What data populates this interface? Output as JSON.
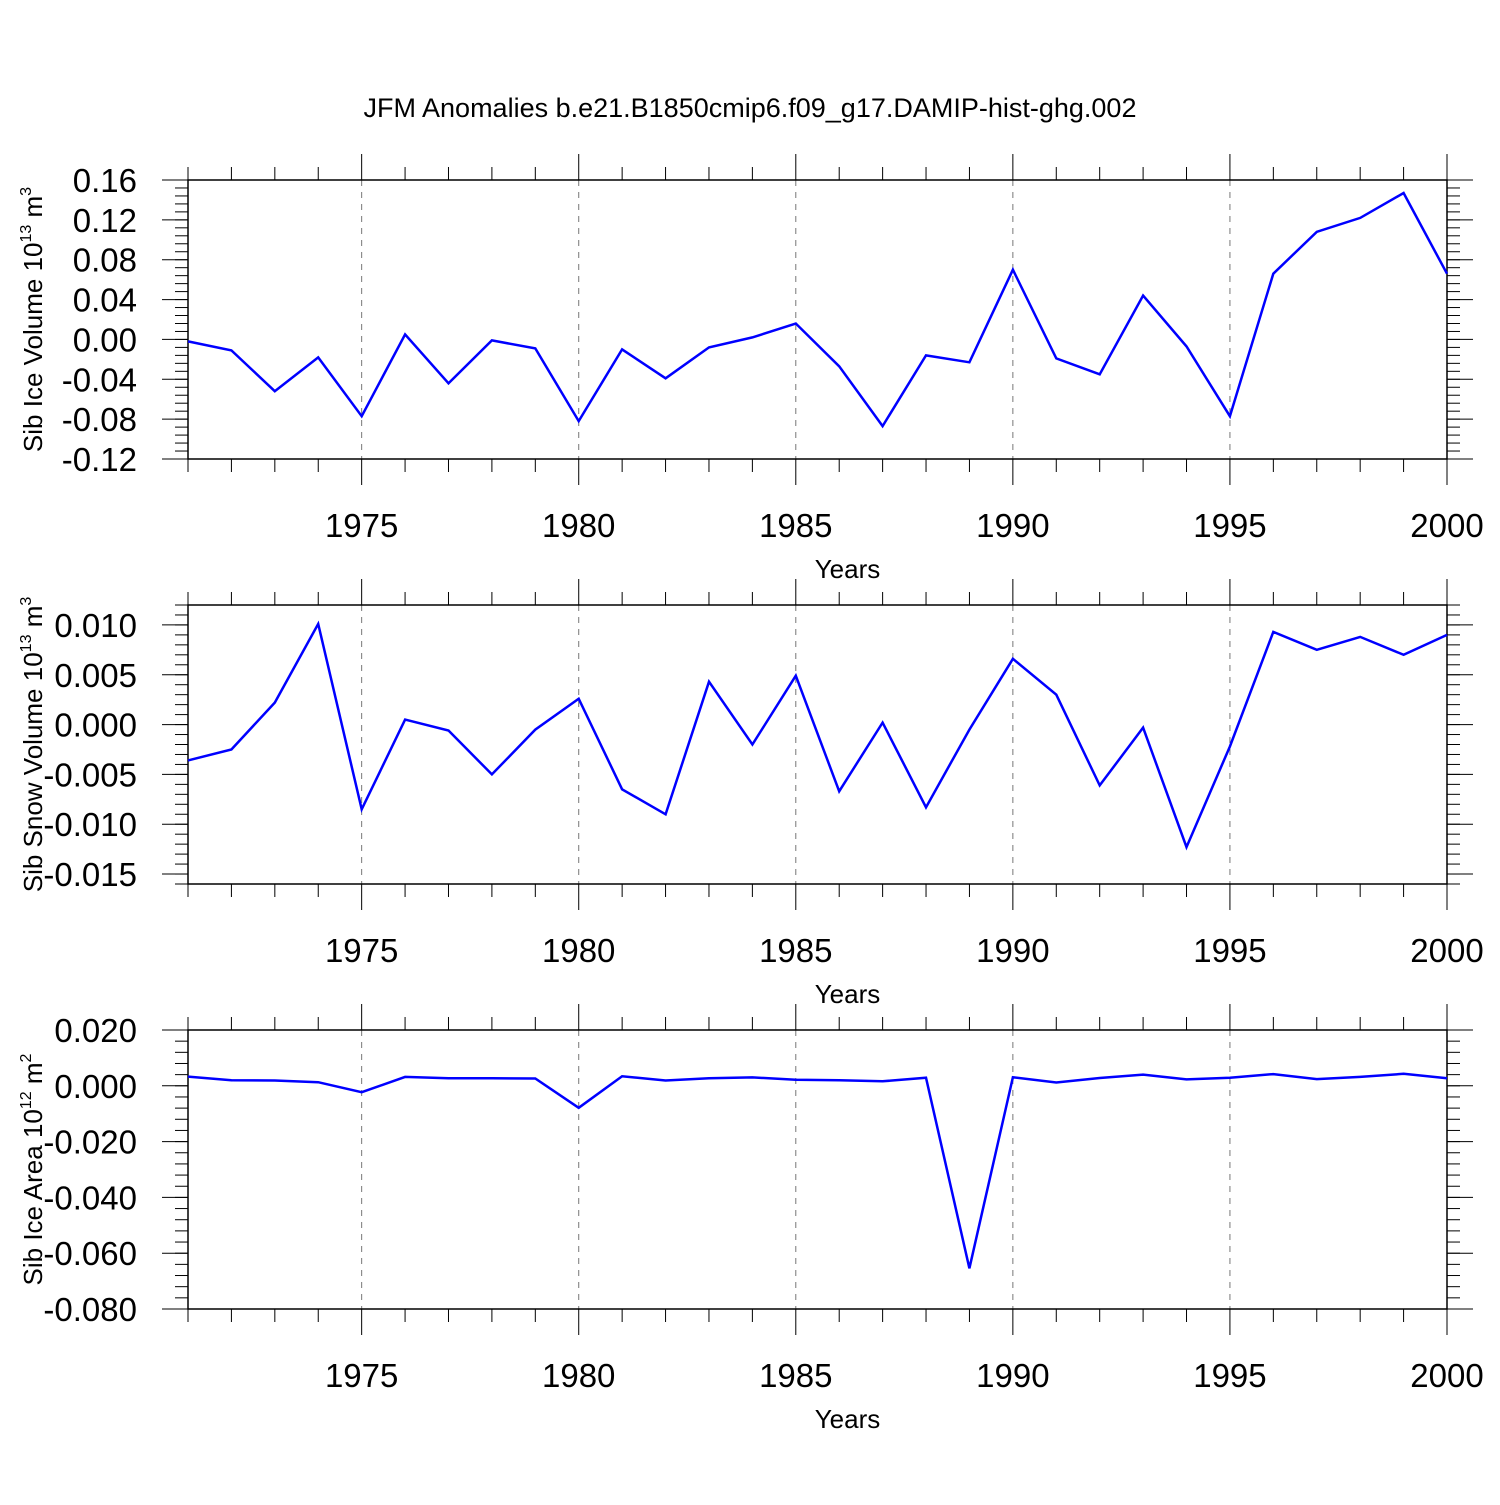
{
  "chart_data": [
    {
      "type": "line",
      "title": "JFM Anomalies b.e21.B1850cmip6.f09_g17.DAMIP-hist-ghg.002",
      "xlabel": "Years",
      "ylabel": "Sib Ice Volume 10",
      "ylabel_exp": "13",
      "ylabel_unit": " m",
      "ylabel_unit_exp": "3",
      "xlim": [
        1971,
        2000
      ],
      "ylim": [
        -0.12,
        0.16
      ],
      "y_major_ticks": [
        -0.12,
        -0.08,
        -0.04,
        0.0,
        0.04,
        0.08,
        0.12,
        0.16
      ],
      "y_tick_labels": [
        "-0.12",
        "-0.08",
        "-0.04",
        "0.00",
        "0.04",
        "0.08",
        "0.12",
        "0.16"
      ],
      "y_minor_step": 0.008,
      "x_major_ticks": [
        1975,
        1980,
        1985,
        1990,
        1995,
        2000
      ],
      "x_tick_labels": [
        "1975",
        "1980",
        "1985",
        "1990",
        "1995",
        "2000"
      ],
      "grid": "vertical dashed at major x ticks",
      "color": "#0000ff",
      "x": [
        1971,
        1972,
        1973,
        1974,
        1975,
        1976,
        1977,
        1978,
        1979,
        1980,
        1981,
        1982,
        1983,
        1984,
        1985,
        1986,
        1987,
        1988,
        1989,
        1990,
        1991,
        1992,
        1993,
        1994,
        1995,
        1996,
        1997,
        1998,
        1999,
        2000
      ],
      "values": [
        -0.002,
        -0.011,
        -0.052,
        -0.018,
        -0.077,
        0.005,
        -0.044,
        -0.001,
        -0.009,
        -0.082,
        -0.01,
        -0.039,
        -0.008,
        0.002,
        0.016,
        -0.027,
        -0.087,
        -0.016,
        -0.023,
        0.07,
        -0.019,
        -0.035,
        0.044,
        -0.007,
        -0.077,
        0.066,
        0.108,
        0.122,
        0.147,
        0.066
      ]
    },
    {
      "type": "line",
      "title": "",
      "xlabel": "Years",
      "ylabel": "Sib Snow Volume 10",
      "ylabel_exp": "13",
      "ylabel_unit": " m",
      "ylabel_unit_exp": "3",
      "xlim": [
        1971,
        2000
      ],
      "ylim": [
        -0.016,
        0.012
      ],
      "y_major_ticks": [
        -0.015,
        -0.01,
        -0.005,
        0.0,
        0.005,
        0.01
      ],
      "y_tick_labels": [
        "-0.015",
        "-0.010",
        "-0.005",
        "0.000",
        "0.005",
        "0.010"
      ],
      "y_minor_step": 0.001,
      "x_major_ticks": [
        1975,
        1980,
        1985,
        1990,
        1995,
        2000
      ],
      "x_tick_labels": [
        "1975",
        "1980",
        "1985",
        "1990",
        "1995",
        "2000"
      ],
      "grid": "vertical dashed at major x ticks",
      "color": "#0000ff",
      "x": [
        1971,
        1972,
        1973,
        1974,
        1975,
        1976,
        1977,
        1978,
        1979,
        1980,
        1981,
        1982,
        1983,
        1984,
        1985,
        1986,
        1987,
        1988,
        1989,
        1990,
        1991,
        1992,
        1993,
        1994,
        1995,
        1996,
        1997,
        1998,
        1999,
        2000
      ],
      "values": [
        -0.0036,
        -0.0025,
        0.0022,
        0.0101,
        -0.0085,
        0.0005,
        -0.0006,
        -0.005,
        -0.0005,
        0.0026,
        -0.0065,
        -0.009,
        0.0043,
        -0.002,
        0.0049,
        -0.0067,
        0.0002,
        -0.0083,
        -0.0005,
        0.0066,
        0.003,
        -0.0061,
        -0.0003,
        -0.0123,
        -0.0022,
        0.0093,
        0.0075,
        0.0088,
        0.007,
        0.009
      ]
    },
    {
      "type": "line",
      "title": "",
      "xlabel": "Years",
      "ylabel": "Sib Ice Area 10",
      "ylabel_exp": "12",
      "ylabel_unit": " m",
      "ylabel_unit_exp": "2",
      "xlim": [
        1971,
        2000
      ],
      "ylim": [
        -0.08,
        0.02
      ],
      "y_major_ticks": [
        -0.08,
        -0.06,
        -0.04,
        -0.02,
        0.0,
        0.02
      ],
      "y_tick_labels": [
        "-0.080",
        "-0.060",
        "-0.040",
        "-0.020",
        "0.000",
        "0.020"
      ],
      "y_minor_step": 0.004,
      "x_major_ticks": [
        1975,
        1980,
        1985,
        1990,
        1995,
        2000
      ],
      "x_tick_labels": [
        "1975",
        "1980",
        "1985",
        "1990",
        "1995",
        "2000"
      ],
      "grid": "vertical dashed at major x ticks",
      "color": "#0000ff",
      "x": [
        1971,
        1972,
        1973,
        1974,
        1975,
        1976,
        1977,
        1978,
        1979,
        1980,
        1981,
        1982,
        1983,
        1984,
        1985,
        1986,
        1987,
        1988,
        1989,
        1990,
        1991,
        1992,
        1993,
        1994,
        1995,
        1996,
        1997,
        1998,
        1999,
        2000
      ],
      "values": [
        0.0033,
        0.002,
        0.0019,
        0.0013,
        -0.0023,
        0.0032,
        0.0027,
        0.0027,
        0.0026,
        -0.0079,
        0.0034,
        0.0019,
        0.0027,
        0.003,
        0.0022,
        0.002,
        0.0016,
        0.0029,
        -0.0654,
        0.0031,
        0.0012,
        0.0028,
        0.004,
        0.0023,
        0.0029,
        0.0042,
        0.0024,
        0.0032,
        0.0043,
        0.0027
      ]
    }
  ]
}
